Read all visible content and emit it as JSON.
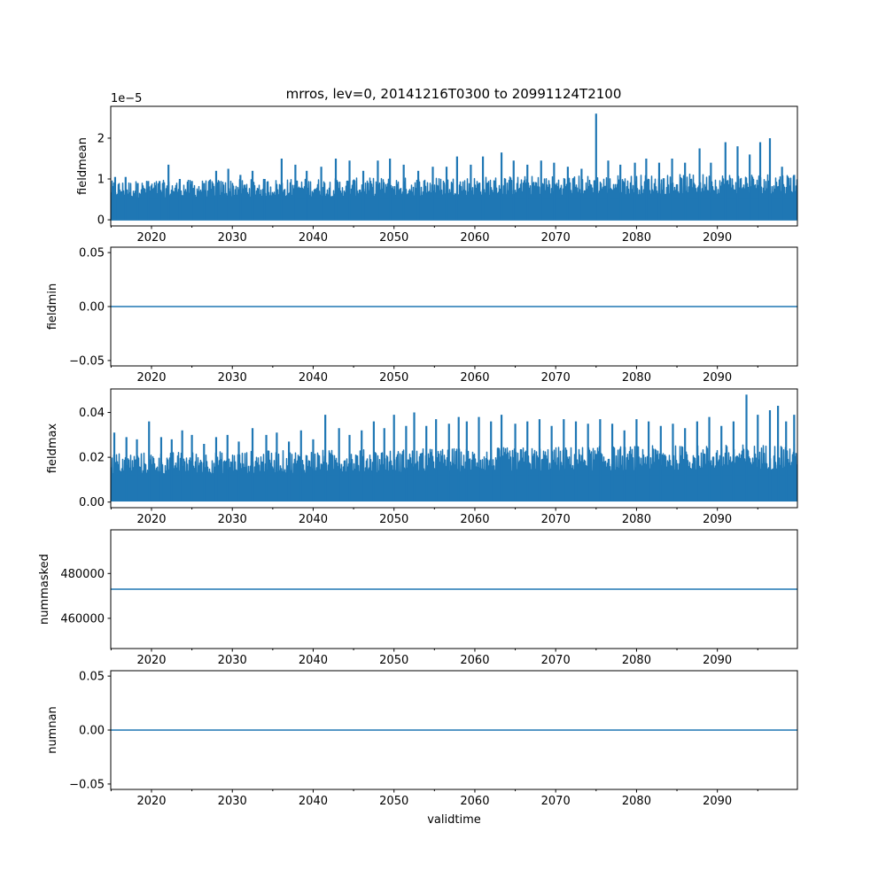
{
  "figure": {
    "title": "mrros, lev=0, 20141216T0300 to 20991124T2100"
  },
  "colors": {
    "series": "#1f77b4",
    "axes": "#000000",
    "background": "#ffffff"
  },
  "chart_data": [
    {
      "type": "line",
      "panel": "fieldmean",
      "ylabel": "fieldmean",
      "xlabel": "",
      "offset_text": "1e−5",
      "scale_exponent": -5,
      "xlim": [
        2014.96,
        2099.9
      ],
      "ylim": [
        -0.15,
        2.78
      ],
      "xticks": [
        2020,
        2030,
        2040,
        2050,
        2060,
        2070,
        2080,
        2090
      ],
      "xtick_labels": [
        "2020",
        "2030",
        "2040",
        "2050",
        "2060",
        "2070",
        "2080",
        "2090"
      ],
      "yticks": [
        0,
        1,
        2
      ],
      "ytick_labels": [
        "0",
        "1",
        "2"
      ],
      "grid": false,
      "series": [
        {
          "low": 0,
          "peaks": [
            [
              2015.5,
              1.05
            ],
            [
              2016.8,
              1.05
            ],
            [
              2018.3,
              0.9
            ],
            [
              2019.6,
              0.95
            ],
            [
              2021.0,
              0.95
            ],
            [
              2022.1,
              1.35
            ],
            [
              2023.5,
              1.0
            ],
            [
              2025.0,
              0.95
            ],
            [
              2026.5,
              0.9
            ],
            [
              2028.0,
              1.2
            ],
            [
              2029.5,
              1.25
            ],
            [
              2031.0,
              1.1
            ],
            [
              2032.5,
              1.2
            ],
            [
              2034.0,
              1.0
            ],
            [
              2036.1,
              1.5
            ],
            [
              2037.8,
              1.35
            ],
            [
              2039.2,
              1.2
            ],
            [
              2041.0,
              1.3
            ],
            [
              2042.8,
              1.5
            ],
            [
              2044.5,
              1.45
            ],
            [
              2046.2,
              1.2
            ],
            [
              2048.0,
              1.45
            ],
            [
              2049.5,
              1.5
            ],
            [
              2051.2,
              1.35
            ],
            [
              2053.0,
              1.2
            ],
            [
              2054.8,
              1.3
            ],
            [
              2056.5,
              1.3
            ],
            [
              2057.8,
              1.55
            ],
            [
              2059.5,
              1.35
            ],
            [
              2061.0,
              1.55
            ],
            [
              2063.3,
              1.65
            ],
            [
              2064.8,
              1.45
            ],
            [
              2066.5,
              1.35
            ],
            [
              2068.2,
              1.45
            ],
            [
              2069.8,
              1.4
            ],
            [
              2071.5,
              1.3
            ],
            [
              2073.2,
              1.25
            ],
            [
              2075.0,
              2.6
            ],
            [
              2076.5,
              1.45
            ],
            [
              2078.0,
              1.35
            ],
            [
              2079.8,
              1.4
            ],
            [
              2081.2,
              1.5
            ],
            [
              2082.8,
              1.4
            ],
            [
              2084.4,
              1.5
            ],
            [
              2086.0,
              1.4
            ],
            [
              2087.8,
              1.75
            ],
            [
              2089.2,
              1.4
            ],
            [
              2091.0,
              1.9
            ],
            [
              2092.5,
              1.8
            ],
            [
              2094.0,
              1.6
            ],
            [
              2095.3,
              1.9
            ],
            [
              2096.5,
              2.0
            ],
            [
              2098.0,
              1.3
            ],
            [
              2099.5,
              1.1
            ]
          ],
          "typical_max": 0.95,
          "typical_max_end": 1.15
        }
      ]
    },
    {
      "type": "line",
      "panel": "fieldmin",
      "ylabel": "fieldmin",
      "xlabel": "",
      "xlim": [
        2014.96,
        2099.9
      ],
      "ylim": [
        -0.055,
        0.055
      ],
      "xticks": [
        2020,
        2030,
        2040,
        2050,
        2060,
        2070,
        2080,
        2090
      ],
      "xtick_labels": [
        "2020",
        "2030",
        "2040",
        "2050",
        "2060",
        "2070",
        "2080",
        "2090"
      ],
      "yticks": [
        -0.05,
        0.0,
        0.05
      ],
      "ytick_labels": [
        "−0.05",
        "0.00",
        "0.05"
      ],
      "grid": false,
      "series": [
        {
          "constant": 0.0
        }
      ]
    },
    {
      "type": "line",
      "panel": "fieldmax",
      "ylabel": "fieldmax",
      "xlabel": "",
      "xlim": [
        2014.96,
        2099.9
      ],
      "ylim": [
        -0.0025,
        0.0505
      ],
      "xticks": [
        2020,
        2030,
        2040,
        2050,
        2060,
        2070,
        2080,
        2090
      ],
      "xtick_labels": [
        "2020",
        "2030",
        "2040",
        "2050",
        "2060",
        "2070",
        "2080",
        "2090"
      ],
      "yticks": [
        0.0,
        0.02,
        0.04
      ],
      "ytick_labels": [
        "0.00",
        "0.02",
        "0.04"
      ],
      "grid": false,
      "series": [
        {
          "low": 0.0005,
          "peaks": [
            [
              2015.4,
              0.031
            ],
            [
              2016.9,
              0.029
            ],
            [
              2018.2,
              0.028
            ],
            [
              2019.7,
              0.036
            ],
            [
              2021.2,
              0.029
            ],
            [
              2022.5,
              0.028
            ],
            [
              2023.8,
              0.032
            ],
            [
              2025.0,
              0.03
            ],
            [
              2026.5,
              0.026
            ],
            [
              2028.0,
              0.029
            ],
            [
              2029.4,
              0.03
            ],
            [
              2030.8,
              0.027
            ],
            [
              2032.5,
              0.033
            ],
            [
              2034.2,
              0.03
            ],
            [
              2035.5,
              0.031
            ],
            [
              2037.0,
              0.027
            ],
            [
              2038.5,
              0.032
            ],
            [
              2040.0,
              0.028
            ],
            [
              2041.5,
              0.039
            ],
            [
              2043.2,
              0.033
            ],
            [
              2044.5,
              0.03
            ],
            [
              2046.0,
              0.032
            ],
            [
              2047.5,
              0.036
            ],
            [
              2048.8,
              0.033
            ],
            [
              2050.0,
              0.039
            ],
            [
              2051.5,
              0.034
            ],
            [
              2052.5,
              0.04
            ],
            [
              2054.0,
              0.034
            ],
            [
              2055.2,
              0.037
            ],
            [
              2056.8,
              0.035
            ],
            [
              2058.0,
              0.038
            ],
            [
              2059.0,
              0.036
            ],
            [
              2060.5,
              0.038
            ],
            [
              2062.0,
              0.036
            ],
            [
              2063.3,
              0.039
            ],
            [
              2065.0,
              0.035
            ],
            [
              2066.5,
              0.036
            ],
            [
              2068.0,
              0.037
            ],
            [
              2069.5,
              0.034
            ],
            [
              2071.0,
              0.037
            ],
            [
              2072.5,
              0.036
            ],
            [
              2074.0,
              0.035
            ],
            [
              2075.5,
              0.037
            ],
            [
              2077.0,
              0.035
            ],
            [
              2078.5,
              0.032
            ],
            [
              2080.0,
              0.037
            ],
            [
              2081.5,
              0.036
            ],
            [
              2083.0,
              0.034
            ],
            [
              2084.5,
              0.035
            ],
            [
              2086.0,
              0.033
            ],
            [
              2087.5,
              0.036
            ],
            [
              2089.0,
              0.038
            ],
            [
              2090.5,
              0.034
            ],
            [
              2092.0,
              0.036
            ],
            [
              2093.6,
              0.048
            ],
            [
              2095.0,
              0.039
            ],
            [
              2096.5,
              0.041
            ],
            [
              2097.5,
              0.043
            ],
            [
              2098.5,
              0.036
            ],
            [
              2099.5,
              0.039
            ]
          ],
          "typical_max": 0.022,
          "typical_max_end": 0.026
        }
      ]
    },
    {
      "type": "line",
      "panel": "nummasked",
      "ylabel": "nummasked",
      "xlabel": "",
      "xlim": [
        2014.96,
        2099.9
      ],
      "ylim": [
        446500,
        499500
      ],
      "xticks": [
        2020,
        2030,
        2040,
        2050,
        2060,
        2070,
        2080,
        2090
      ],
      "xtick_labels": [
        "2020",
        "2030",
        "2040",
        "2050",
        "2060",
        "2070",
        "2080",
        "2090"
      ],
      "yticks": [
        460000,
        480000
      ],
      "ytick_labels": [
        "460000",
        "480000"
      ],
      "grid": false,
      "series": [
        {
          "constant": 473000
        }
      ]
    },
    {
      "type": "line",
      "panel": "numnan",
      "ylabel": "numnan",
      "xlabel": "validtime",
      "xlim": [
        2014.96,
        2099.9
      ],
      "ylim": [
        -0.055,
        0.055
      ],
      "xticks": [
        2020,
        2030,
        2040,
        2050,
        2060,
        2070,
        2080,
        2090
      ],
      "xtick_labels": [
        "2020",
        "2030",
        "2040",
        "2050",
        "2060",
        "2070",
        "2080",
        "2090"
      ],
      "yticks": [
        -0.05,
        0.0,
        0.05
      ],
      "ytick_labels": [
        "−0.05",
        "0.00",
        "0.05"
      ],
      "grid": false,
      "series": [
        {
          "constant": 0.0
        }
      ]
    }
  ]
}
